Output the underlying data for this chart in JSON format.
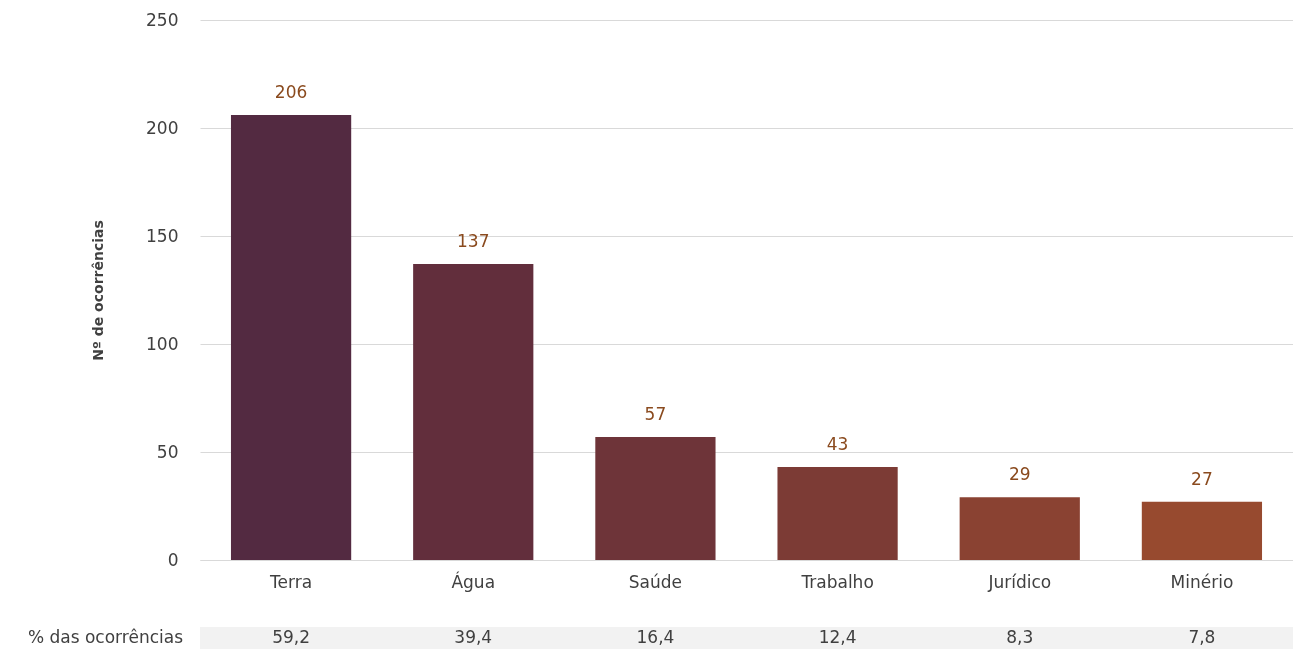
{
  "chart_data": {
    "type": "bar",
    "ylabel": "Nº de ocorrências",
    "categories": [
      "Terra",
      "Água",
      "Saúde",
      "Trabalho",
      "Jurídico",
      "Minério"
    ],
    "values": [
      206,
      137,
      57,
      43,
      29,
      27
    ],
    "colors": [
      "#532a41",
      "#622e3c",
      "#6e3439",
      "#7c3b35",
      "#8a4232",
      "#974a2f"
    ],
    "ylim": [
      0,
      250
    ],
    "yticks": [
      0,
      50,
      100,
      150,
      200,
      250
    ],
    "grid": "y",
    "data_labels": true,
    "annotations": [
      "% das ocorrências",
      "59,2",
      "39,4",
      "16,4",
      "12,4",
      "8,3",
      "7,8"
    ]
  }
}
